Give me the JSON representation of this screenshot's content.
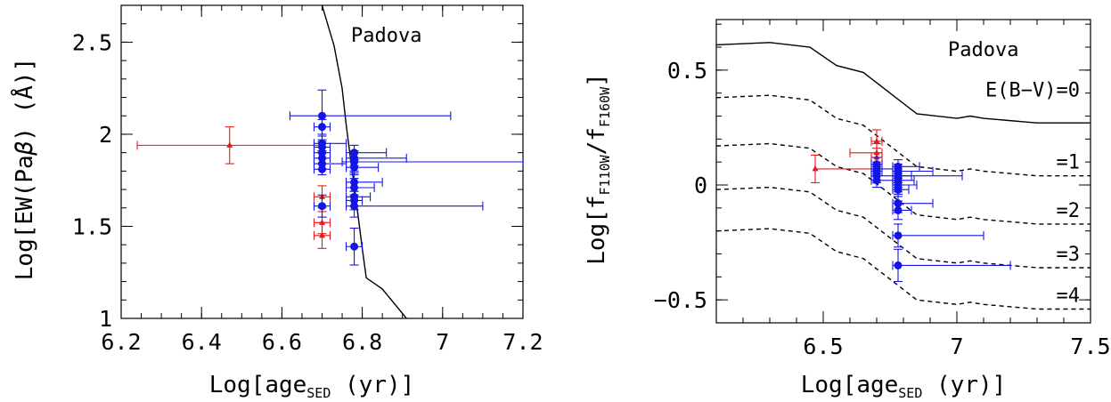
{
  "colors": {
    "red": "#e41a1c",
    "blue": "#1414e6",
    "black": "#000000"
  },
  "chart_data": [
    {
      "type": "scatter",
      "annotation": "Padova",
      "xlabel": {
        "prefix": "Log[age",
        "sub": "SED",
        "suffix": " (yr)]"
      },
      "ylabel": {
        "prefix": "Log[EW(Pa",
        "greek": "β",
        "suffix": ") (Å)]"
      },
      "xlim": [
        6.2,
        7.2
      ],
      "ylim": [
        1.0,
        2.7
      ],
      "xticks": [
        "6.2",
        "6.4",
        "6.6",
        "6.8",
        "7",
        "7.2"
      ],
      "yticks": [
        "1",
        "1.5",
        "2",
        "2.5"
      ],
      "model_curve": [
        [
          6.7,
          2.7
        ],
        [
          6.73,
          2.48
        ],
        [
          6.75,
          2.25
        ],
        [
          6.76,
          2.05
        ],
        [
          6.77,
          1.88
        ],
        [
          6.78,
          1.72
        ],
        [
          6.79,
          1.55
        ],
        [
          6.8,
          1.38
        ],
        [
          6.81,
          1.22
        ],
        [
          6.85,
          1.16
        ],
        [
          6.88,
          1.08
        ],
        [
          6.91,
          1.0
        ]
      ],
      "series": [
        {
          "color": "red",
          "marker": "triangle",
          "points": [
            {
              "x": 6.47,
              "y": 1.94,
              "xerr": [
                0.23,
                0.23
              ],
              "yerr": [
                0.1,
                0.1
              ]
            },
            {
              "x": 6.7,
              "y": 1.66,
              "xerr": [
                0.02,
                0.02
              ],
              "yerr": [
                0.06,
                0.06
              ]
            },
            {
              "x": 6.7,
              "y": 1.52,
              "xerr": [
                0.02,
                0.02
              ],
              "yerr": [
                0.06,
                0.06
              ]
            },
            {
              "x": 6.7,
              "y": 1.45,
              "xerr": [
                0.02,
                0.02
              ],
              "yerr": [
                0.07,
                0.07
              ]
            }
          ]
        },
        {
          "color": "blue",
          "marker": "circle",
          "points": [
            {
              "x": 6.7,
              "y": 2.1,
              "xerr": [
                0.08,
                0.32
              ],
              "yerr": [
                0.13,
                0.14
              ]
            },
            {
              "x": 6.7,
              "y": 2.04,
              "xerr": [
                0.02,
                0.02
              ],
              "yerr": [
                0.04,
                0.04
              ]
            },
            {
              "x": 6.7,
              "y": 1.95,
              "xerr": [
                0.02,
                0.06
              ],
              "yerr": [
                0.04,
                0.04
              ]
            },
            {
              "x": 6.7,
              "y": 1.93,
              "xerr": [
                0.02,
                0.02
              ],
              "yerr": [
                0.03,
                0.03
              ]
            },
            {
              "x": 6.7,
              "y": 1.9,
              "xerr": [
                0.02,
                0.02
              ],
              "yerr": [
                0.03,
                0.03
              ]
            },
            {
              "x": 6.7,
              "y": 1.87,
              "xerr": [
                0.02,
                0.02
              ],
              "yerr": [
                0.03,
                0.03
              ]
            },
            {
              "x": 6.7,
              "y": 1.84,
              "xerr": [
                0.02,
                0.06
              ],
              "yerr": [
                0.03,
                0.03
              ]
            },
            {
              "x": 6.7,
              "y": 1.81,
              "xerr": [
                0.02,
                0.02
              ],
              "yerr": [
                0.03,
                0.03
              ]
            },
            {
              "x": 6.7,
              "y": 1.61,
              "xerr": [
                0.02,
                0.02
              ],
              "yerr": [
                0.06,
                0.06
              ]
            },
            {
              "x": 6.78,
              "y": 1.9,
              "xerr": [
                0.02,
                0.08
              ],
              "yerr": [
                0.04,
                0.04
              ]
            },
            {
              "x": 6.78,
              "y": 1.87,
              "xerr": [
                0.02,
                0.13
              ],
              "yerr": [
                0.04,
                0.04
              ]
            },
            {
              "x": 6.78,
              "y": 1.85,
              "xerr": [
                0.03,
                0.42
              ],
              "yerr": [
                0.05,
                0.05
              ]
            },
            {
              "x": 6.78,
              "y": 1.82,
              "xerr": [
                0.02,
                0.06
              ],
              "yerr": [
                0.04,
                0.04
              ]
            },
            {
              "x": 6.78,
              "y": 1.74,
              "xerr": [
                0.02,
                0.07
              ],
              "yerr": [
                0.05,
                0.05
              ]
            },
            {
              "x": 6.78,
              "y": 1.71,
              "xerr": [
                0.02,
                0.05
              ],
              "yerr": [
                0.05,
                0.05
              ]
            },
            {
              "x": 6.78,
              "y": 1.66,
              "xerr": [
                0.02,
                0.04
              ],
              "yerr": [
                0.05,
                0.05
              ]
            },
            {
              "x": 6.78,
              "y": 1.64,
              "xerr": [
                0.02,
                0.02
              ],
              "yerr": [
                0.05,
                0.05
              ]
            },
            {
              "x": 6.78,
              "y": 1.61,
              "xerr": [
                0.02,
                0.32
              ],
              "yerr": [
                0.06,
                0.06
              ]
            },
            {
              "x": 6.78,
              "y": 1.39,
              "xerr": [
                0.02,
                0.02
              ],
              "yerr": [
                0.1,
                0.1
              ]
            }
          ]
        }
      ]
    },
    {
      "type": "scatter",
      "annotation": "Padova",
      "xlabel": {
        "prefix": "Log[age",
        "sub": "SED",
        "suffix": " (yr)]"
      },
      "ylabel": {
        "prefix": "Log[f",
        "sub1": "F110W",
        "mid": "/f",
        "sub2": "F160W",
        "suffix": "]"
      },
      "xlim": [
        6.1,
        7.5
      ],
      "ylim": [
        -0.6,
        0.72
      ],
      "xticks": [
        "6.5",
        "7",
        "7.5"
      ],
      "yticks": [
        "-0.5",
        "0",
        "0.5"
      ],
      "model_curves": [
        {
          "label": "E(B−V)=0",
          "style": "solid",
          "points": [
            [
              6.1,
              0.61
            ],
            [
              6.3,
              0.62
            ],
            [
              6.45,
              0.6
            ],
            [
              6.55,
              0.52
            ],
            [
              6.65,
              0.49
            ],
            [
              6.75,
              0.4
            ],
            [
              6.85,
              0.31
            ],
            [
              7.0,
              0.29
            ],
            [
              7.05,
              0.3
            ],
            [
              7.1,
              0.29
            ],
            [
              7.3,
              0.27
            ],
            [
              7.5,
              0.27
            ]
          ]
        },
        {
          "label": "=1",
          "style": "dashed",
          "points": [
            [
              6.1,
              0.38
            ],
            [
              6.3,
              0.39
            ],
            [
              6.45,
              0.37
            ],
            [
              6.55,
              0.29
            ],
            [
              6.65,
              0.26
            ],
            [
              6.75,
              0.17
            ],
            [
              6.85,
              0.08
            ],
            [
              7.0,
              0.06
            ],
            [
              7.05,
              0.07
            ],
            [
              7.1,
              0.06
            ],
            [
              7.3,
              0.04
            ],
            [
              7.5,
              0.04
            ]
          ]
        },
        {
          "label": "=2",
          "style": "dashed",
          "points": [
            [
              6.1,
              0.17
            ],
            [
              6.3,
              0.18
            ],
            [
              6.45,
              0.16
            ],
            [
              6.55,
              0.08
            ],
            [
              6.65,
              0.05
            ],
            [
              6.75,
              -0.04
            ],
            [
              6.85,
              -0.13
            ],
            [
              7.0,
              -0.15
            ],
            [
              7.05,
              -0.14
            ],
            [
              7.1,
              -0.15
            ],
            [
              7.3,
              -0.17
            ],
            [
              7.5,
              -0.17
            ]
          ]
        },
        {
          "label": "=3",
          "style": "dashed",
          "points": [
            [
              6.1,
              -0.02
            ],
            [
              6.3,
              -0.01
            ],
            [
              6.45,
              -0.03
            ],
            [
              6.55,
              -0.11
            ],
            [
              6.65,
              -0.14
            ],
            [
              6.75,
              -0.23
            ],
            [
              6.85,
              -0.32
            ],
            [
              7.0,
              -0.34
            ],
            [
              7.05,
              -0.33
            ],
            [
              7.1,
              -0.34
            ],
            [
              7.3,
              -0.36
            ],
            [
              7.5,
              -0.36
            ]
          ]
        },
        {
          "label": "=4",
          "style": "dashed",
          "points": [
            [
              6.1,
              -0.2
            ],
            [
              6.3,
              -0.19
            ],
            [
              6.45,
              -0.21
            ],
            [
              6.55,
              -0.29
            ],
            [
              6.65,
              -0.32
            ],
            [
              6.75,
              -0.41
            ],
            [
              6.85,
              -0.5
            ],
            [
              7.0,
              -0.52
            ],
            [
              7.05,
              -0.51
            ],
            [
              7.1,
              -0.52
            ],
            [
              7.3,
              -0.54
            ],
            [
              7.5,
              -0.54
            ]
          ]
        }
      ],
      "series": [
        {
          "color": "red",
          "marker": "triangle",
          "points": [
            {
              "x": 6.47,
              "y": 0.07,
              "xerr": [
                0.0,
                0.23
              ],
              "yerr": [
                0.06,
                0.06
              ]
            },
            {
              "x": 6.7,
              "y": 0.19,
              "xerr": [
                0.02,
                0.02
              ],
              "yerr": [
                0.05,
                0.05
              ]
            },
            {
              "x": 6.7,
              "y": 0.14,
              "xerr": [
                0.1,
                0.02
              ],
              "yerr": [
                0.04,
                0.04
              ]
            },
            {
              "x": 6.7,
              "y": 0.12,
              "xerr": [
                0.02,
                0.02
              ],
              "yerr": [
                0.04,
                0.04
              ]
            }
          ]
        },
        {
          "color": "blue",
          "marker": "circle",
          "points": [
            {
              "x": 6.7,
              "y": 0.09,
              "xerr": [
                0.02,
                0.02
              ],
              "yerr": [
                0.03,
                0.03
              ]
            },
            {
              "x": 6.7,
              "y": 0.07,
              "xerr": [
                0.02,
                0.06
              ],
              "yerr": [
                0.02,
                0.02
              ]
            },
            {
              "x": 6.7,
              "y": 0.06,
              "xerr": [
                0.02,
                0.02
              ],
              "yerr": [
                0.02,
                0.02
              ]
            },
            {
              "x": 6.7,
              "y": 0.04,
              "xerr": [
                0.02,
                0.32
              ],
              "yerr": [
                0.03,
                0.03
              ]
            },
            {
              "x": 6.7,
              "y": 0.02,
              "xerr": [
                0.02,
                0.06
              ],
              "yerr": [
                0.03,
                0.03
              ]
            },
            {
              "x": 6.78,
              "y": 0.08,
              "xerr": [
                0.02,
                0.08
              ],
              "yerr": [
                0.03,
                0.03
              ]
            },
            {
              "x": 6.78,
              "y": 0.06,
              "xerr": [
                0.02,
                0.13
              ],
              "yerr": [
                0.03,
                0.03
              ]
            },
            {
              "x": 6.78,
              "y": 0.04,
              "xerr": [
                0.02,
                0.05
              ],
              "yerr": [
                0.03,
                0.03
              ]
            },
            {
              "x": 6.78,
              "y": 0.02,
              "xerr": [
                0.02,
                0.06
              ],
              "yerr": [
                0.03,
                0.03
              ]
            },
            {
              "x": 6.78,
              "y": 0.0,
              "xerr": [
                0.02,
                0.07
              ],
              "yerr": [
                0.03,
                0.03
              ]
            },
            {
              "x": 6.78,
              "y": -0.02,
              "xerr": [
                0.02,
                0.04
              ],
              "yerr": [
                0.03,
                0.03
              ]
            },
            {
              "x": 6.78,
              "y": -0.08,
              "xerr": [
                0.02,
                0.13
              ],
              "yerr": [
                0.04,
                0.04
              ]
            },
            {
              "x": 6.78,
              "y": -0.11,
              "xerr": [
                0.02,
                0.05
              ],
              "yerr": [
                0.04,
                0.04
              ]
            },
            {
              "x": 6.78,
              "y": -0.22,
              "xerr": [
                0.02,
                0.32
              ],
              "yerr": [
                0.05,
                0.05
              ]
            },
            {
              "x": 6.78,
              "y": -0.35,
              "xerr": [
                0.02,
                0.42
              ],
              "yerr": [
                0.07,
                0.07
              ]
            }
          ]
        }
      ]
    }
  ]
}
